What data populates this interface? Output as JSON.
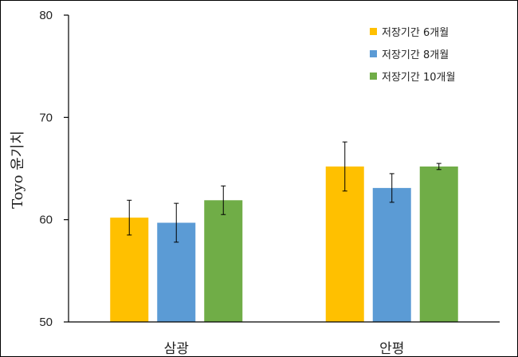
{
  "chart_data": {
    "type": "bar",
    "title": "",
    "xlabel": "",
    "ylabel": "Toyo 윤기치",
    "ylim": [
      50,
      80
    ],
    "yticks": [
      50,
      60,
      70,
      80
    ],
    "grid": false,
    "legend_position": "top-right",
    "categories": [
      "삼광",
      "안평"
    ],
    "series": [
      {
        "name": "저장기간 6개월",
        "color": "#FFC000",
        "values": [
          60.2,
          65.2
        ],
        "errors": [
          1.7,
          2.4
        ]
      },
      {
        "name": "저장기간 8개월",
        "color": "#5B9BD5",
        "values": [
          59.7,
          63.1
        ],
        "errors": [
          1.9,
          1.4
        ]
      },
      {
        "name": "저장기간 10개월",
        "color": "#70AD47",
        "values": [
          61.9,
          65.2
        ],
        "errors": [
          1.4,
          0.3
        ]
      }
    ]
  }
}
